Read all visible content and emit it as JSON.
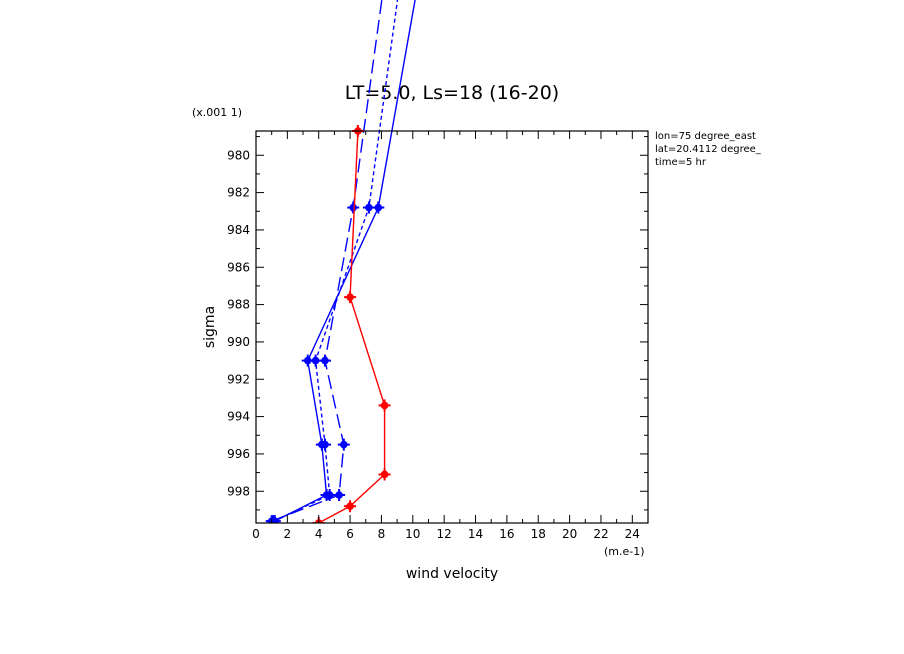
{
  "chart_data": {
    "type": "line",
    "title": "LT=5.0, Ls=18 (16-20)",
    "xlabel": "wind velocity",
    "x_unit": "(m.e-1)",
    "ylabel": "sigma",
    "y_scale_note": "(x.001 1)",
    "xlim": [
      0,
      25
    ],
    "ylim": [
      999.7,
      978.7
    ],
    "x_ticks": [
      0,
      2,
      4,
      6,
      8,
      10,
      12,
      14,
      16,
      18,
      20,
      22,
      24
    ],
    "y_ticks": [
      980,
      982,
      984,
      986,
      988,
      990,
      992,
      994,
      996,
      998
    ],
    "annotations": [
      "lon=75 degree_east",
      "lat=20.4112 degree_",
      "time=5 hr"
    ],
    "series": [
      {
        "color": "#0000ff",
        "dash": "solid",
        "points": [
          [
            1.2,
            999.6
          ],
          [
            4.5,
            998.2
          ],
          [
            4.2,
            995.5
          ],
          [
            3.3,
            991.0
          ],
          [
            7.8,
            982.8
          ],
          [
            10.5,
            970.0
          ]
        ]
      },
      {
        "color": "#0000ff",
        "dash": "long",
        "points": [
          [
            1.0,
            999.6
          ],
          [
            5.3,
            998.2
          ],
          [
            5.6,
            995.5
          ],
          [
            4.4,
            991.0
          ],
          [
            6.2,
            982.8
          ],
          [
            8.3,
            970.0
          ]
        ]
      },
      {
        "color": "#0000ff",
        "dash": "short",
        "points": [
          [
            1.1,
            999.6
          ],
          [
            4.7,
            998.2
          ],
          [
            4.4,
            995.5
          ],
          [
            3.8,
            991.0
          ],
          [
            7.2,
            982.8
          ],
          [
            9.3,
            970.0
          ]
        ]
      },
      {
        "color": "#ff0000",
        "dash": "solid",
        "points": [
          [
            4.0,
            999.7
          ],
          [
            6.0,
            998.8
          ],
          [
            8.2,
            997.1
          ],
          [
            8.2,
            993.4
          ],
          [
            6.0,
            987.6
          ],
          [
            6.5,
            978.7
          ]
        ]
      }
    ]
  }
}
